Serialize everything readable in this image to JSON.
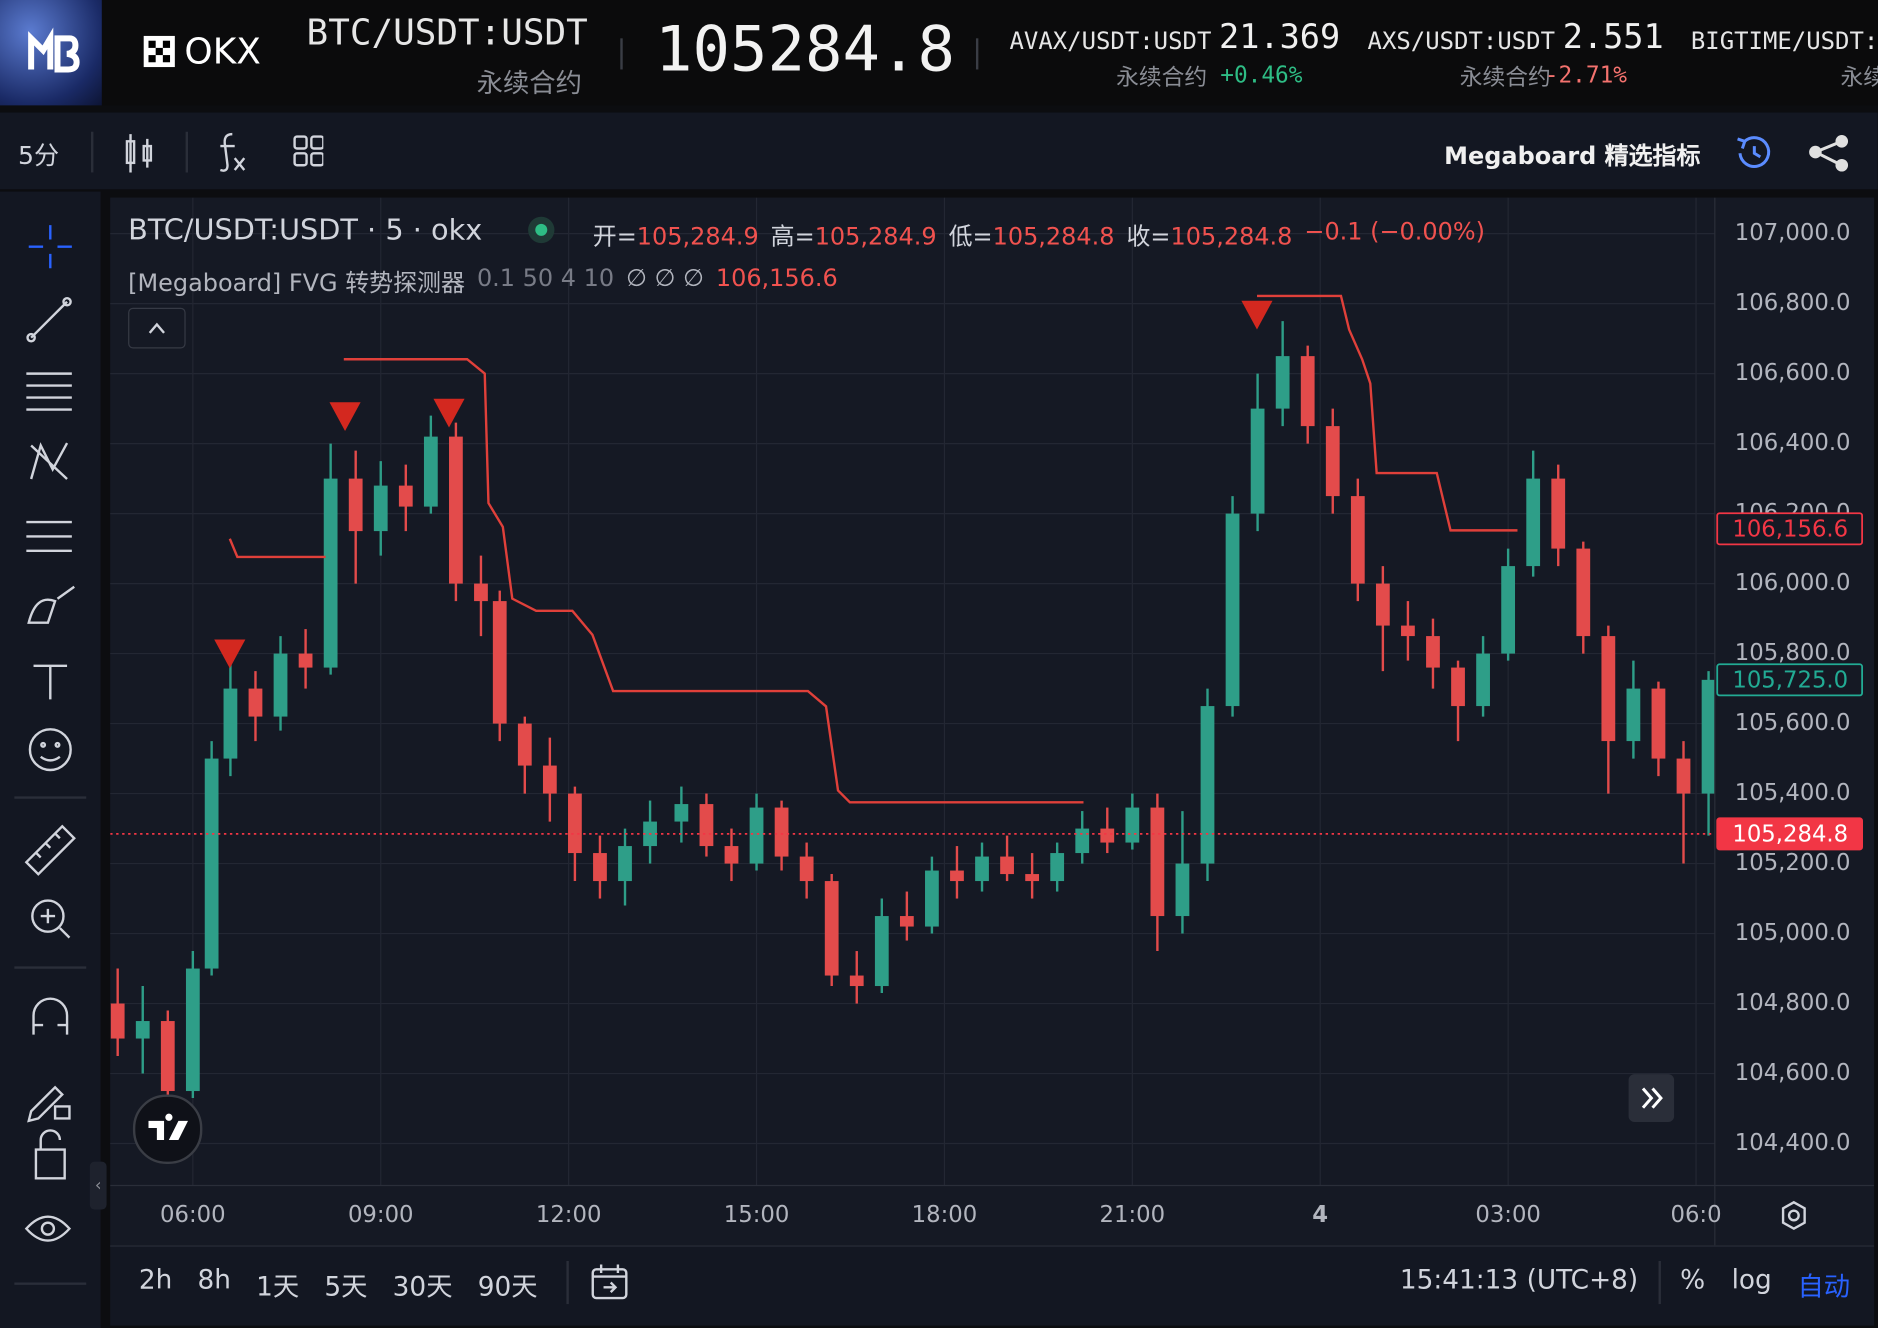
{
  "header": {
    "brand": "OKX",
    "symbol": "BTC/USDT:USDT",
    "contract": "永续合约",
    "price": "105284.8",
    "tickers": [
      {
        "symbol": "AVAX/USDT:USDT",
        "price": "21.369",
        "contract": "永续合约",
        "change": "+0.46%"
      },
      {
        "symbol": "AXS/USDT:USDT",
        "price": "2.551",
        "contract": "永续合约",
        "change": "-2.71%"
      },
      {
        "symbol": "BIGTIME/USDT:",
        "contract": "永续"
      }
    ]
  },
  "toolbar": {
    "interval": "5分",
    "indicator_menu": "Megaboard 精选指标"
  },
  "legend": {
    "title": "BTC/USDT:USDT · 5 · okx",
    "ohlc": [
      {
        "label": "开=",
        "value": "105,284.9"
      },
      {
        "label": "高=",
        "value": "105,284.9"
      },
      {
        "label": "低=",
        "value": "105,284.8"
      },
      {
        "label": "收=",
        "value": "105,284.8"
      }
    ],
    "change": "−0.1 (−0.00%)",
    "indicator": "[Megaboard] FVG 转势探测器",
    "params": "0.1 50 4 10",
    "empties": "∅ ∅ ∅",
    "indicator_value": "106,156.6"
  },
  "chart_data": {
    "type": "candlestick",
    "up_color": "#2e9e88",
    "down_color": "#e34b4b",
    "grid": true,
    "x": [
      4.8,
      5.2,
      5.6,
      6.0,
      6.3,
      6.6,
      7.0,
      7.4,
      7.8,
      8.2,
      8.6,
      9.0,
      9.4,
      9.8,
      10.2,
      10.6,
      10.9,
      11.3,
      11.7,
      12.1,
      12.5,
      12.9,
      13.3,
      13.8,
      14.2,
      14.6,
      15.0,
      15.4,
      15.8,
      16.2,
      16.6,
      17.0,
      17.4,
      17.8,
      18.2,
      18.6,
      19.0,
      19.4,
      19.8,
      20.2,
      20.6,
      21.0,
      21.4,
      21.8,
      22.2,
      22.6,
      23.0,
      23.4,
      23.8,
      24.2,
      24.6,
      25.0,
      25.4,
      25.8,
      26.2,
      26.6,
      27.0,
      27.4,
      27.8,
      28.2,
      28.6,
      29.0,
      29.4,
      29.8,
      30.2
    ],
    "open": [
      104800,
      104700,
      104750,
      104550,
      104900,
      105500,
      105700,
      105620,
      105800,
      105760,
      106300,
      106150,
      106280,
      106220,
      106420,
      106000,
      105950,
      105600,
      105480,
      105400,
      105230,
      105150,
      105250,
      105320,
      105370,
      105250,
      105200,
      105360,
      105220,
      105150,
      104880,
      104850,
      105050,
      105020,
      105180,
      105150,
      105220,
      105170,
      105150,
      105230,
      105300,
      105260,
      105360,
      105050,
      105200,
      105650,
      106200,
      106500,
      106650,
      106450,
      106250,
      106000,
      105880,
      105850,
      105760,
      105650,
      105800,
      106050,
      106300,
      106100,
      105850,
      105550,
      105700,
      105500,
      105400
    ],
    "high": [
      104900,
      104850,
      104780,
      104950,
      105550,
      105800,
      105750,
      105850,
      105870,
      106400,
      106380,
      106350,
      106340,
      106480,
      106460,
      106080,
      105980,
      105620,
      105560,
      105420,
      105280,
      105300,
      105380,
      105420,
      105400,
      105300,
      105400,
      105380,
      105260,
      105170,
      104950,
      105100,
      105120,
      105220,
      105250,
      105260,
      105280,
      105230,
      105260,
      105350,
      105360,
      105400,
      105400,
      105350,
      105700,
      106250,
      106600,
      106750,
      106680,
      106500,
      106300,
      106050,
      105950,
      105900,
      105780,
      105850,
      106100,
      106380,
      106340,
      106120,
      105880,
      105780,
      105720,
      105550,
      105750
    ],
    "low": [
      104650,
      104600,
      104480,
      104530,
      104880,
      105450,
      105550,
      105580,
      105700,
      105740,
      106000,
      106080,
      106150,
      106200,
      105950,
      105850,
      105550,
      105400,
      105320,
      105150,
      105100,
      105080,
      105200,
      105260,
      105220,
      105150,
      105180,
      105180,
      105100,
      104850,
      104800,
      104830,
      104980,
      105000,
      105100,
      105120,
      105150,
      105100,
      105120,
      105200,
      105230,
      105240,
      104950,
      105000,
      105150,
      105620,
      106150,
      106450,
      106400,
      106200,
      105950,
      105750,
      105780,
      105700,
      105550,
      105620,
      105780,
      106020,
      106050,
      105800,
      105400,
      105500,
      105450,
      105200,
      105280
    ],
    "close": [
      104700,
      104750,
      104550,
      104900,
      105500,
      105700,
      105620,
      105800,
      105760,
      106300,
      106150,
      106280,
      106220,
      106420,
      106000,
      105950,
      105600,
      105480,
      105400,
      105230,
      105150,
      105250,
      105320,
      105370,
      105250,
      105200,
      105360,
      105220,
      105150,
      104880,
      104850,
      105050,
      105020,
      105180,
      105150,
      105220,
      105170,
      105150,
      105230,
      105300,
      105260,
      105360,
      105050,
      105200,
      105650,
      106200,
      106500,
      106650,
      106450,
      106250,
      106000,
      105880,
      105850,
      105760,
      105650,
      105800,
      106050,
      106300,
      106100,
      105850,
      105550,
      105700,
      105500,
      105400,
      105725
    ],
    "line": {
      "color": "#e0403a",
      "x": [
        6.59,
        6.71,
        8.12,
        null,
        8.41,
        10.38,
        10.66,
        10.72,
        10.95,
        11.1,
        11.48,
        12.06,
        12.38,
        12.71,
        15.82,
        16.11,
        16.3,
        16.49,
        20.22,
        null,
        22.99,
        24.33,
        24.46,
        24.67,
        24.8,
        24.9,
        25.86,
        26.08,
        27.15
      ],
      "y": [
        106128,
        106076,
        106076,
        null,
        106641,
        106641,
        106600,
        106230,
        106162,
        105957,
        105922,
        105922,
        105854,
        105693,
        105693,
        105649,
        105409,
        105375,
        105375,
        null,
        106822,
        106822,
        106726,
        106641,
        106572,
        106316,
        106316,
        106152,
        106152
      ]
    },
    "signals": {
      "color": "#d3281f",
      "x": [
        6.59,
        8.43,
        10.09,
        22.99
      ],
      "y": [
        105758,
        106436,
        106446,
        106726
      ]
    },
    "price_markers": [
      {
        "value": 106156.6,
        "label": "106,156.6",
        "style": "outline",
        "color": "#f23645"
      },
      {
        "value": 105725.0,
        "label": "105,725.0",
        "style": "outline",
        "color": "#22ab94"
      },
      {
        "value": 105284.8,
        "label": "105,284.8",
        "style": "filled",
        "color": "#f23645"
      }
    ],
    "xlim": [
      4.68,
      30.3
    ],
    "ylim": [
      104280,
      107103
    ],
    "xticks": [
      {
        "value": 6,
        "label": "06:00"
      },
      {
        "value": 9,
        "label": "09:00"
      },
      {
        "value": 12,
        "label": "12:00"
      },
      {
        "value": 15,
        "label": "15:00"
      },
      {
        "value": 18,
        "label": "18:00"
      },
      {
        "value": 21,
        "label": "21:00"
      },
      {
        "value": 24,
        "label": "4"
      },
      {
        "value": 27,
        "label": "03:00"
      },
      {
        "value": 30,
        "label": "06:0"
      }
    ],
    "yticks": [
      {
        "value": 104400,
        "label": "104,400.0"
      },
      {
        "value": 104600,
        "label": "104,600.0"
      },
      {
        "value": 104800,
        "label": "104,800.0"
      },
      {
        "value": 105000,
        "label": "105,000.0"
      },
      {
        "value": 105200,
        "label": "105,200.0"
      },
      {
        "value": 105400,
        "label": "105,400.0"
      },
      {
        "value": 105600,
        "label": "105,600.0"
      },
      {
        "value": 105800,
        "label": "105,800.0"
      },
      {
        "value": 106000,
        "label": "106,000.0"
      },
      {
        "value": 106200,
        "label": "106,200.0"
      },
      {
        "value": 106400,
        "label": "106,400.0"
      },
      {
        "value": 106600,
        "label": "106,600.0"
      },
      {
        "value": 106800,
        "label": "106,800.0"
      },
      {
        "value": 107000,
        "label": "107,000.0"
      }
    ]
  },
  "bottom": {
    "ranges": [
      "2h",
      "8h",
      "1天",
      "5天",
      "30天",
      "90天"
    ],
    "time": "15:41:13 (UTC+8)",
    "scale_options": [
      "%",
      "log",
      "自动"
    ]
  }
}
